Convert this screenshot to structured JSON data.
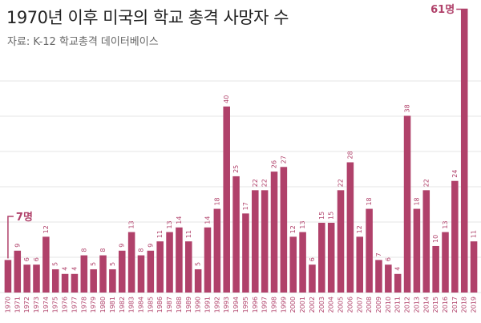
{
  "header": {
    "title": "1970년 이후 미국의 학교 총격 사망자 수",
    "subtitle": "자료: K-12 학교총격 데이터베이스"
  },
  "colors": {
    "bar": "#b0416a",
    "label": "#b0416a",
    "grid": "#e6e6e6",
    "axis_text": "#b0416a"
  },
  "chart_data": {
    "type": "bar",
    "title": "1970년 이후 미국의 학교 총격 사망자 수",
    "subtitle": "자료: K-12 학교총격 데이터베이스",
    "xlabel": "",
    "ylabel": "",
    "ylim": [
      0,
      61
    ],
    "grid": "horizontal",
    "categories": [
      "1970",
      "1971",
      "1972",
      "1973",
      "1974",
      "1975",
      "1976",
      "1977",
      "1978",
      "1979",
      "1980",
      "1981",
      "1982",
      "1983",
      "1984",
      "1985",
      "1986",
      "1987",
      "1988",
      "1989",
      "1990",
      "1991",
      "1992",
      "1993",
      "1994",
      "1995",
      "1996",
      "1997",
      "1998",
      "1999",
      "2000",
      "2001",
      "2002",
      "2003",
      "2004",
      "2005",
      "2006",
      "2007",
      "2008",
      "2009",
      "2010",
      "2011",
      "2012",
      "2013",
      "2014",
      "2015",
      "2016",
      "2017",
      "2018",
      "2019"
    ],
    "values": [
      7,
      9,
      6,
      6,
      12,
      5,
      4,
      4,
      8,
      5,
      8,
      5,
      9,
      13,
      8,
      9,
      11,
      13,
      14,
      11,
      5,
      14,
      18,
      40,
      25,
      17,
      22,
      22,
      26,
      27,
      12,
      13,
      6,
      15,
      15,
      22,
      28,
      12,
      18,
      7,
      6,
      4,
      38,
      18,
      22,
      10,
      13,
      24,
      61,
      11
    ],
    "callouts": [
      {
        "category": "1970",
        "text": "7명"
      },
      {
        "category": "2018",
        "text": "61명"
      }
    ]
  }
}
